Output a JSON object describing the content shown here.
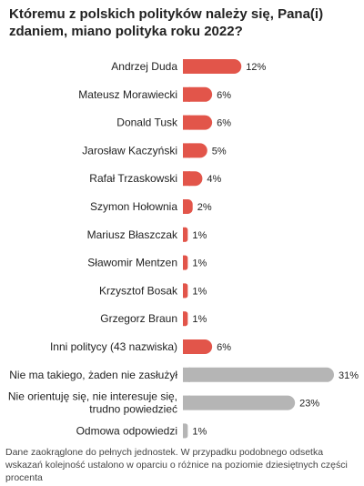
{
  "title": "Któremu z polskich polityków należy się, Pana(i) zdaniem, miano polityka roku 2022?",
  "footnote": "Dane zaokrąglone do pełnych jednostek. W przypadku podobnego odsetka wskazań kolejność ustalono w oparciu o różnice na poziomie dziesiętnych części procenta",
  "colors": {
    "politician": "#e2554a",
    "other": "#b5b5b5",
    "label": "#222222"
  },
  "chart_data": {
    "type": "bar",
    "orientation": "horizontal",
    "title": "Któremu z polskich polityków należy się, Pana(i) zdaniem, miano polityka roku 2022?",
    "unit": "%",
    "categories": [
      "Andrzej Duda",
      "Mateusz Morawiecki",
      "Donald Tusk",
      "Jarosław Kaczyński",
      "Rafał Trzaskowski",
      "Szymon Hołownia",
      "Mariusz Błaszczak",
      "Sławomir Mentzen",
      "Krzysztof Bosak",
      "Grzegorz Braun",
      "Inni politycy (43 nazwiska)",
      "Nie ma takiego, żaden nie zasłużył",
      "Nie orientuję się, nie interesuje się, trudno powiedzieć",
      "Odmowa odpowiedzi"
    ],
    "values": [
      12,
      6,
      6,
      5,
      4,
      2,
      1,
      1,
      1,
      1,
      6,
      31,
      23,
      1
    ],
    "value_labels": [
      "12%",
      "6%",
      "6%",
      "5%",
      "4%",
      "2%",
      "1%",
      "1%",
      "1%",
      "1%",
      "6%",
      "31%",
      "23%",
      "1%"
    ],
    "groups": [
      "politician",
      "politician",
      "politician",
      "politician",
      "politician",
      "politician",
      "politician",
      "politician",
      "politician",
      "politician",
      "politician",
      "other",
      "other",
      "other"
    ],
    "xlim": [
      0,
      31
    ],
    "grid": false,
    "legend": "none"
  }
}
